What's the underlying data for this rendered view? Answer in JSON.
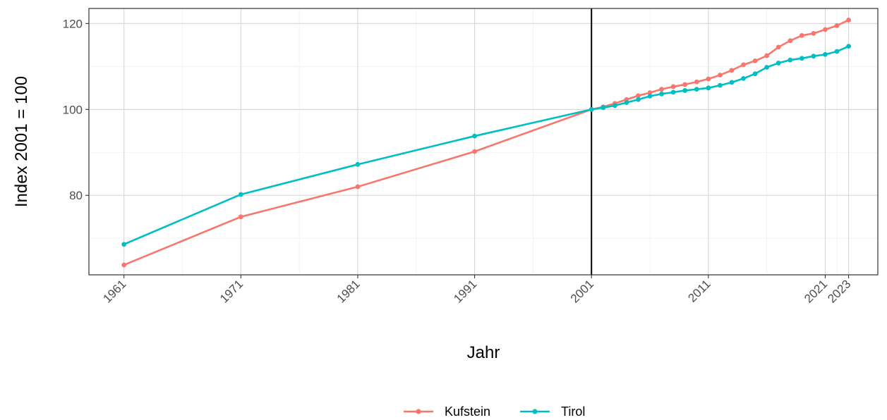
{
  "chart_data": {
    "type": "line",
    "xlabel": "Jahr",
    "ylabel": "Index 2001 = 100",
    "x_ticks": [
      1961,
      1971,
      1981,
      1991,
      2001,
      2011,
      2021,
      2023
    ],
    "y_ticks": [
      80,
      100,
      120
    ],
    "xlim": [
      1958,
      2025.5
    ],
    "ylim": [
      61.5,
      123.5
    ],
    "grid": true,
    "reference_line_x": 2001,
    "legend_position": "bottom",
    "series": [
      {
        "name": "Kufstein",
        "color": "#F8766D",
        "x": [
          1961,
          1971,
          1981,
          1991,
          2001,
          2002,
          2003,
          2004,
          2005,
          2006,
          2007,
          2008,
          2009,
          2010,
          2011,
          2012,
          2013,
          2014,
          2015,
          2016,
          2017,
          2018,
          2019,
          2020,
          2021,
          2022,
          2023
        ],
        "values": [
          63.8,
          75.0,
          82.0,
          90.2,
          100.0,
          100.6,
          101.4,
          102.3,
          103.2,
          103.9,
          104.7,
          105.3,
          105.8,
          106.4,
          107.1,
          108.0,
          109.1,
          110.4,
          111.3,
          112.5,
          114.5,
          116.0,
          117.2,
          117.7,
          118.6,
          119.5,
          120.8
        ]
      },
      {
        "name": "Tirol",
        "color": "#00BFC4",
        "x": [
          1961,
          1971,
          1981,
          1991,
          2001,
          2002,
          2003,
          2004,
          2005,
          2006,
          2007,
          2008,
          2009,
          2010,
          2011,
          2012,
          2013,
          2014,
          2015,
          2016,
          2017,
          2018,
          2019,
          2020,
          2021,
          2022,
          2023
        ],
        "values": [
          68.6,
          80.2,
          87.2,
          93.8,
          100.0,
          100.4,
          100.9,
          101.6,
          102.3,
          103.1,
          103.6,
          104.0,
          104.4,
          104.7,
          105.0,
          105.6,
          106.3,
          107.2,
          108.3,
          109.8,
          110.8,
          111.5,
          111.9,
          112.4,
          112.8,
          113.5,
          114.7
        ]
      }
    ]
  }
}
